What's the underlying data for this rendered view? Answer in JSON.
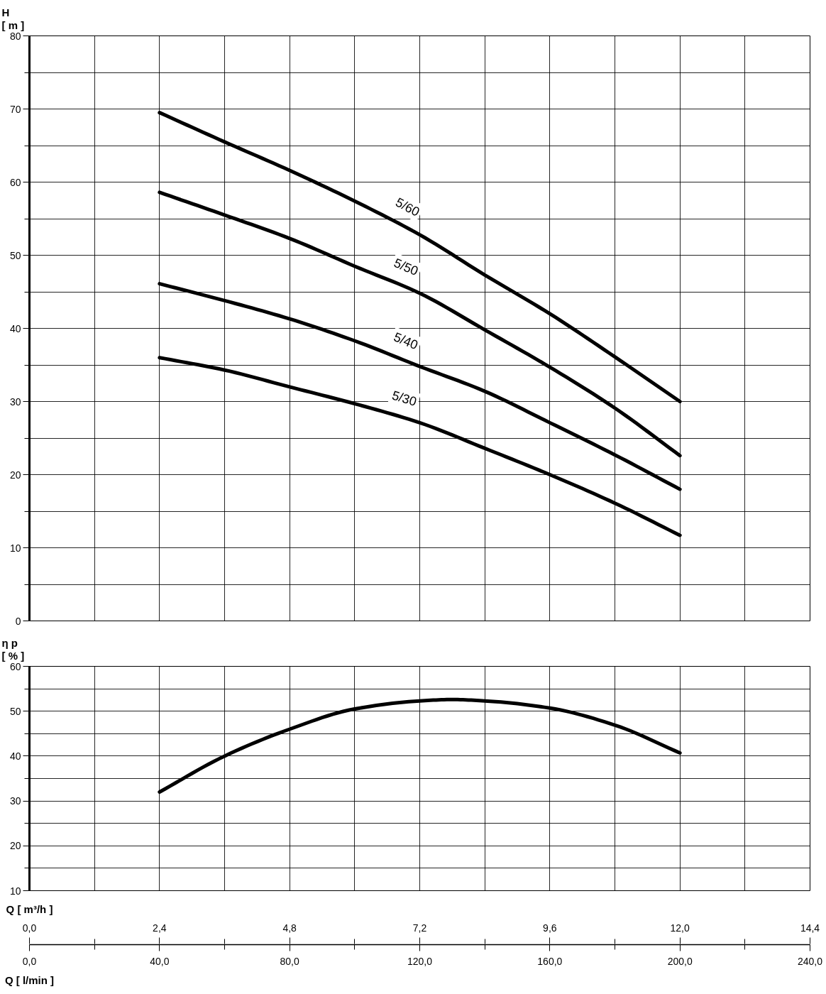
{
  "chart_data": [
    {
      "type": "line",
      "ylabel": "H\n[ m ]",
      "x": [
        40,
        60,
        80,
        100,
        120,
        140,
        160,
        180,
        200
      ],
      "series": [
        {
          "name": "5/60",
          "color": "#000000",
          "values": [
            69.5,
            65.5,
            61.6,
            57.4,
            52.8,
            47.3,
            42.0,
            36.1,
            30.0
          ]
        },
        {
          "name": "5/50",
          "color": "#000000",
          "values": [
            58.6,
            55.5,
            52.3,
            48.5,
            44.8,
            39.8,
            34.7,
            29.1,
            22.6
          ]
        },
        {
          "name": "5/40",
          "color": "#000000",
          "values": [
            46.1,
            43.8,
            41.3,
            38.3,
            34.8,
            31.4,
            27.1,
            22.7,
            18.0
          ]
        },
        {
          "name": "5/30",
          "color": "#000000",
          "values": [
            36.0,
            34.3,
            32.0,
            29.7,
            27.1,
            23.6,
            20.0,
            16.1,
            11.7
          ]
        }
      ],
      "xlim": [
        0,
        240
      ],
      "xticks": [
        {
          "value": 0,
          "label": null
        },
        {
          "value": 20,
          "label": null
        },
        {
          "value": 40,
          "label": null
        },
        {
          "value": 60,
          "label": null
        },
        {
          "value": 80,
          "label": null
        },
        {
          "value": 100,
          "label": null
        },
        {
          "value": 120,
          "label": null
        },
        {
          "value": 140,
          "label": null
        },
        {
          "value": 160,
          "label": null
        },
        {
          "value": 180,
          "label": null
        },
        {
          "value": 200,
          "label": null
        },
        {
          "value": 220,
          "label": null
        },
        {
          "value": 240,
          "label": null
        }
      ],
      "ylim": [
        0,
        80
      ],
      "yticks": [
        0,
        {
          "value": 5,
          "label": null
        },
        10,
        {
          "value": 15,
          "label": null
        },
        20,
        {
          "value": 25,
          "label": null
        },
        30,
        {
          "value": 35,
          "label": null
        },
        40,
        {
          "value": 45,
          "label": null
        },
        50,
        {
          "value": 55,
          "label": null
        },
        60,
        {
          "value": 65,
          "label": null
        },
        70,
        {
          "value": 75,
          "label": null
        },
        80
      ],
      "grid": true,
      "tick_labels": "y"
    },
    {
      "type": "line",
      "ylabel": "η p\n[ % ]",
      "xlabel": "Q [ l/min ]",
      "x2label": "Q [ m³/h ]",
      "x": [
        40,
        60,
        80,
        100,
        120,
        130,
        140,
        160,
        180,
        200
      ],
      "series": [
        {
          "color": "#000000",
          "values": [
            32.0,
            40.0,
            46.0,
            50.5,
            52.3,
            52.6,
            52.3,
            50.7,
            46.9,
            40.7
          ]
        }
      ],
      "xlim": [
        0,
        240
      ],
      "xticks": [
        {
          "value": 0,
          "label": "0,0"
        },
        {
          "value": 20,
          "label": null
        },
        {
          "value": 40,
          "label": "40,0"
        },
        {
          "value": 60,
          "label": null
        },
        {
          "value": 80,
          "label": "80,0"
        },
        {
          "value": 100,
          "label": null
        },
        {
          "value": 120,
          "label": "120,0"
        },
        {
          "value": 140,
          "label": null
        },
        {
          "value": 160,
          "label": "160,0"
        },
        {
          "value": 180,
          "label": null
        },
        {
          "value": 200,
          "label": "200,0"
        },
        {
          "value": 220,
          "label": null
        },
        {
          "value": 240,
          "label": "240,0"
        }
      ],
      "x2lim": [
        0,
        14.4
      ],
      "x2ticks": [
        {
          "value": 0,
          "label": "0,0"
        },
        {
          "value": 1.2,
          "label": null
        },
        {
          "value": 2.4,
          "label": "2,4"
        },
        {
          "value": 3.6,
          "label": null
        },
        {
          "value": 4.8,
          "label": "4,8"
        },
        {
          "value": 6.0,
          "label": null
        },
        {
          "value": 7.2,
          "label": "7,2"
        },
        {
          "value": 8.4,
          "label": null
        },
        {
          "value": 9.6,
          "label": "9,6"
        },
        {
          "value": 10.8,
          "label": null
        },
        {
          "value": 12.0,
          "label": "12,0"
        },
        {
          "value": 13.2,
          "label": null
        },
        {
          "value": 14.4,
          "label": "14,4"
        }
      ],
      "ylim": [
        10,
        60
      ],
      "yticks": [
        10,
        {
          "value": 15,
          "label": null
        },
        20,
        {
          "value": 25,
          "label": null
        },
        30,
        {
          "value": 35,
          "label": null
        },
        40,
        {
          "value": 45,
          "label": null
        },
        50,
        {
          "value": 55,
          "label": null
        },
        60
      ],
      "grid": true
    }
  ]
}
